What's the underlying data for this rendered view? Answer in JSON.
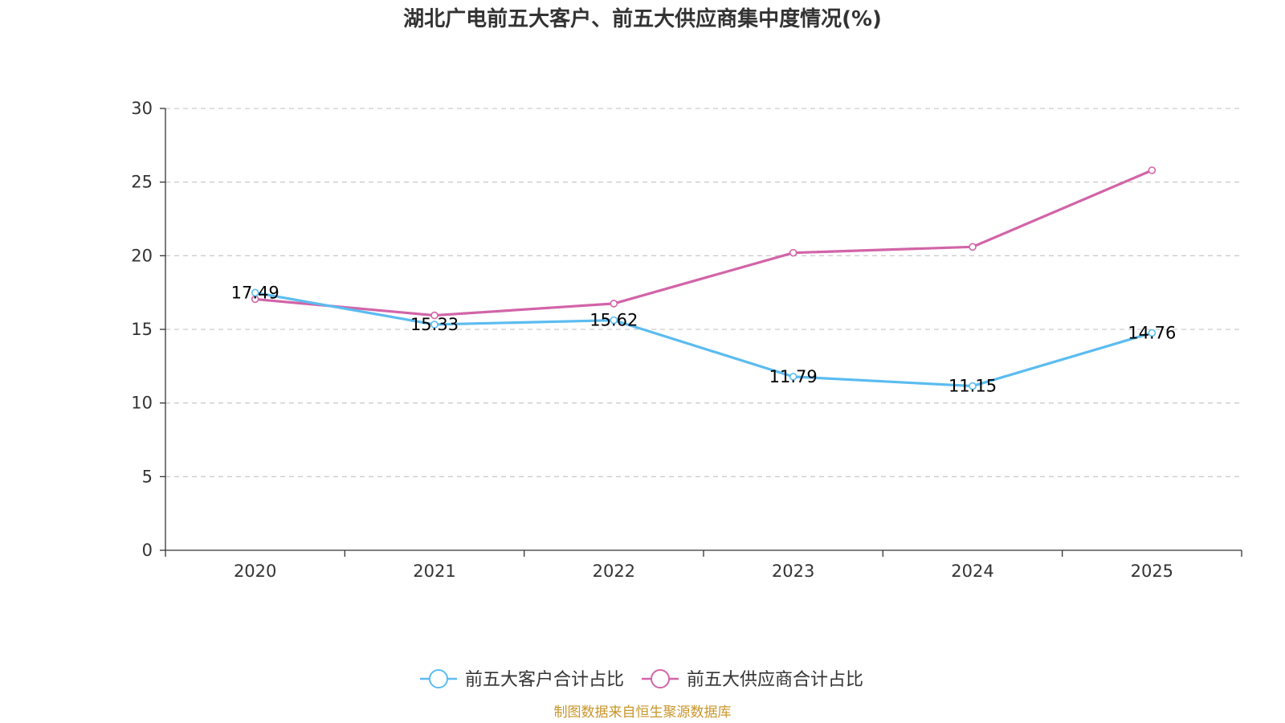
{
  "chart_data": {
    "type": "line",
    "title": "湖北广电前五大客户、前五大供应商集中度情况(%)",
    "categories": [
      "2020",
      "2021",
      "2022",
      "2023",
      "2024",
      "2025"
    ],
    "ylim": [
      0,
      30
    ],
    "yticks": [
      0,
      5,
      10,
      15,
      20,
      25,
      30
    ],
    "grid": true,
    "legend_position": "bottom",
    "series": [
      {
        "name": "前五大客户合计占比",
        "color": "#5bbcf0",
        "values": [
          17.49,
          15.33,
          15.62,
          11.79,
          11.15,
          14.76
        ],
        "labels": [
          "17.49",
          "15.33",
          "15.62",
          "11.79",
          "11.15",
          "14.76"
        ],
        "show_labels": true
      },
      {
        "name": "前五大供应商合计占比",
        "color": "#d264a8",
        "values": [
          17.05,
          15.95,
          16.75,
          20.2,
          20.6,
          25.8
        ],
        "show_labels": false
      }
    ]
  },
  "source": {
    "text": "制图数据来自恒生聚源数据库",
    "color": "#c8962a"
  },
  "colors": {
    "axis": "#333333",
    "grid": "#cccccc"
  }
}
